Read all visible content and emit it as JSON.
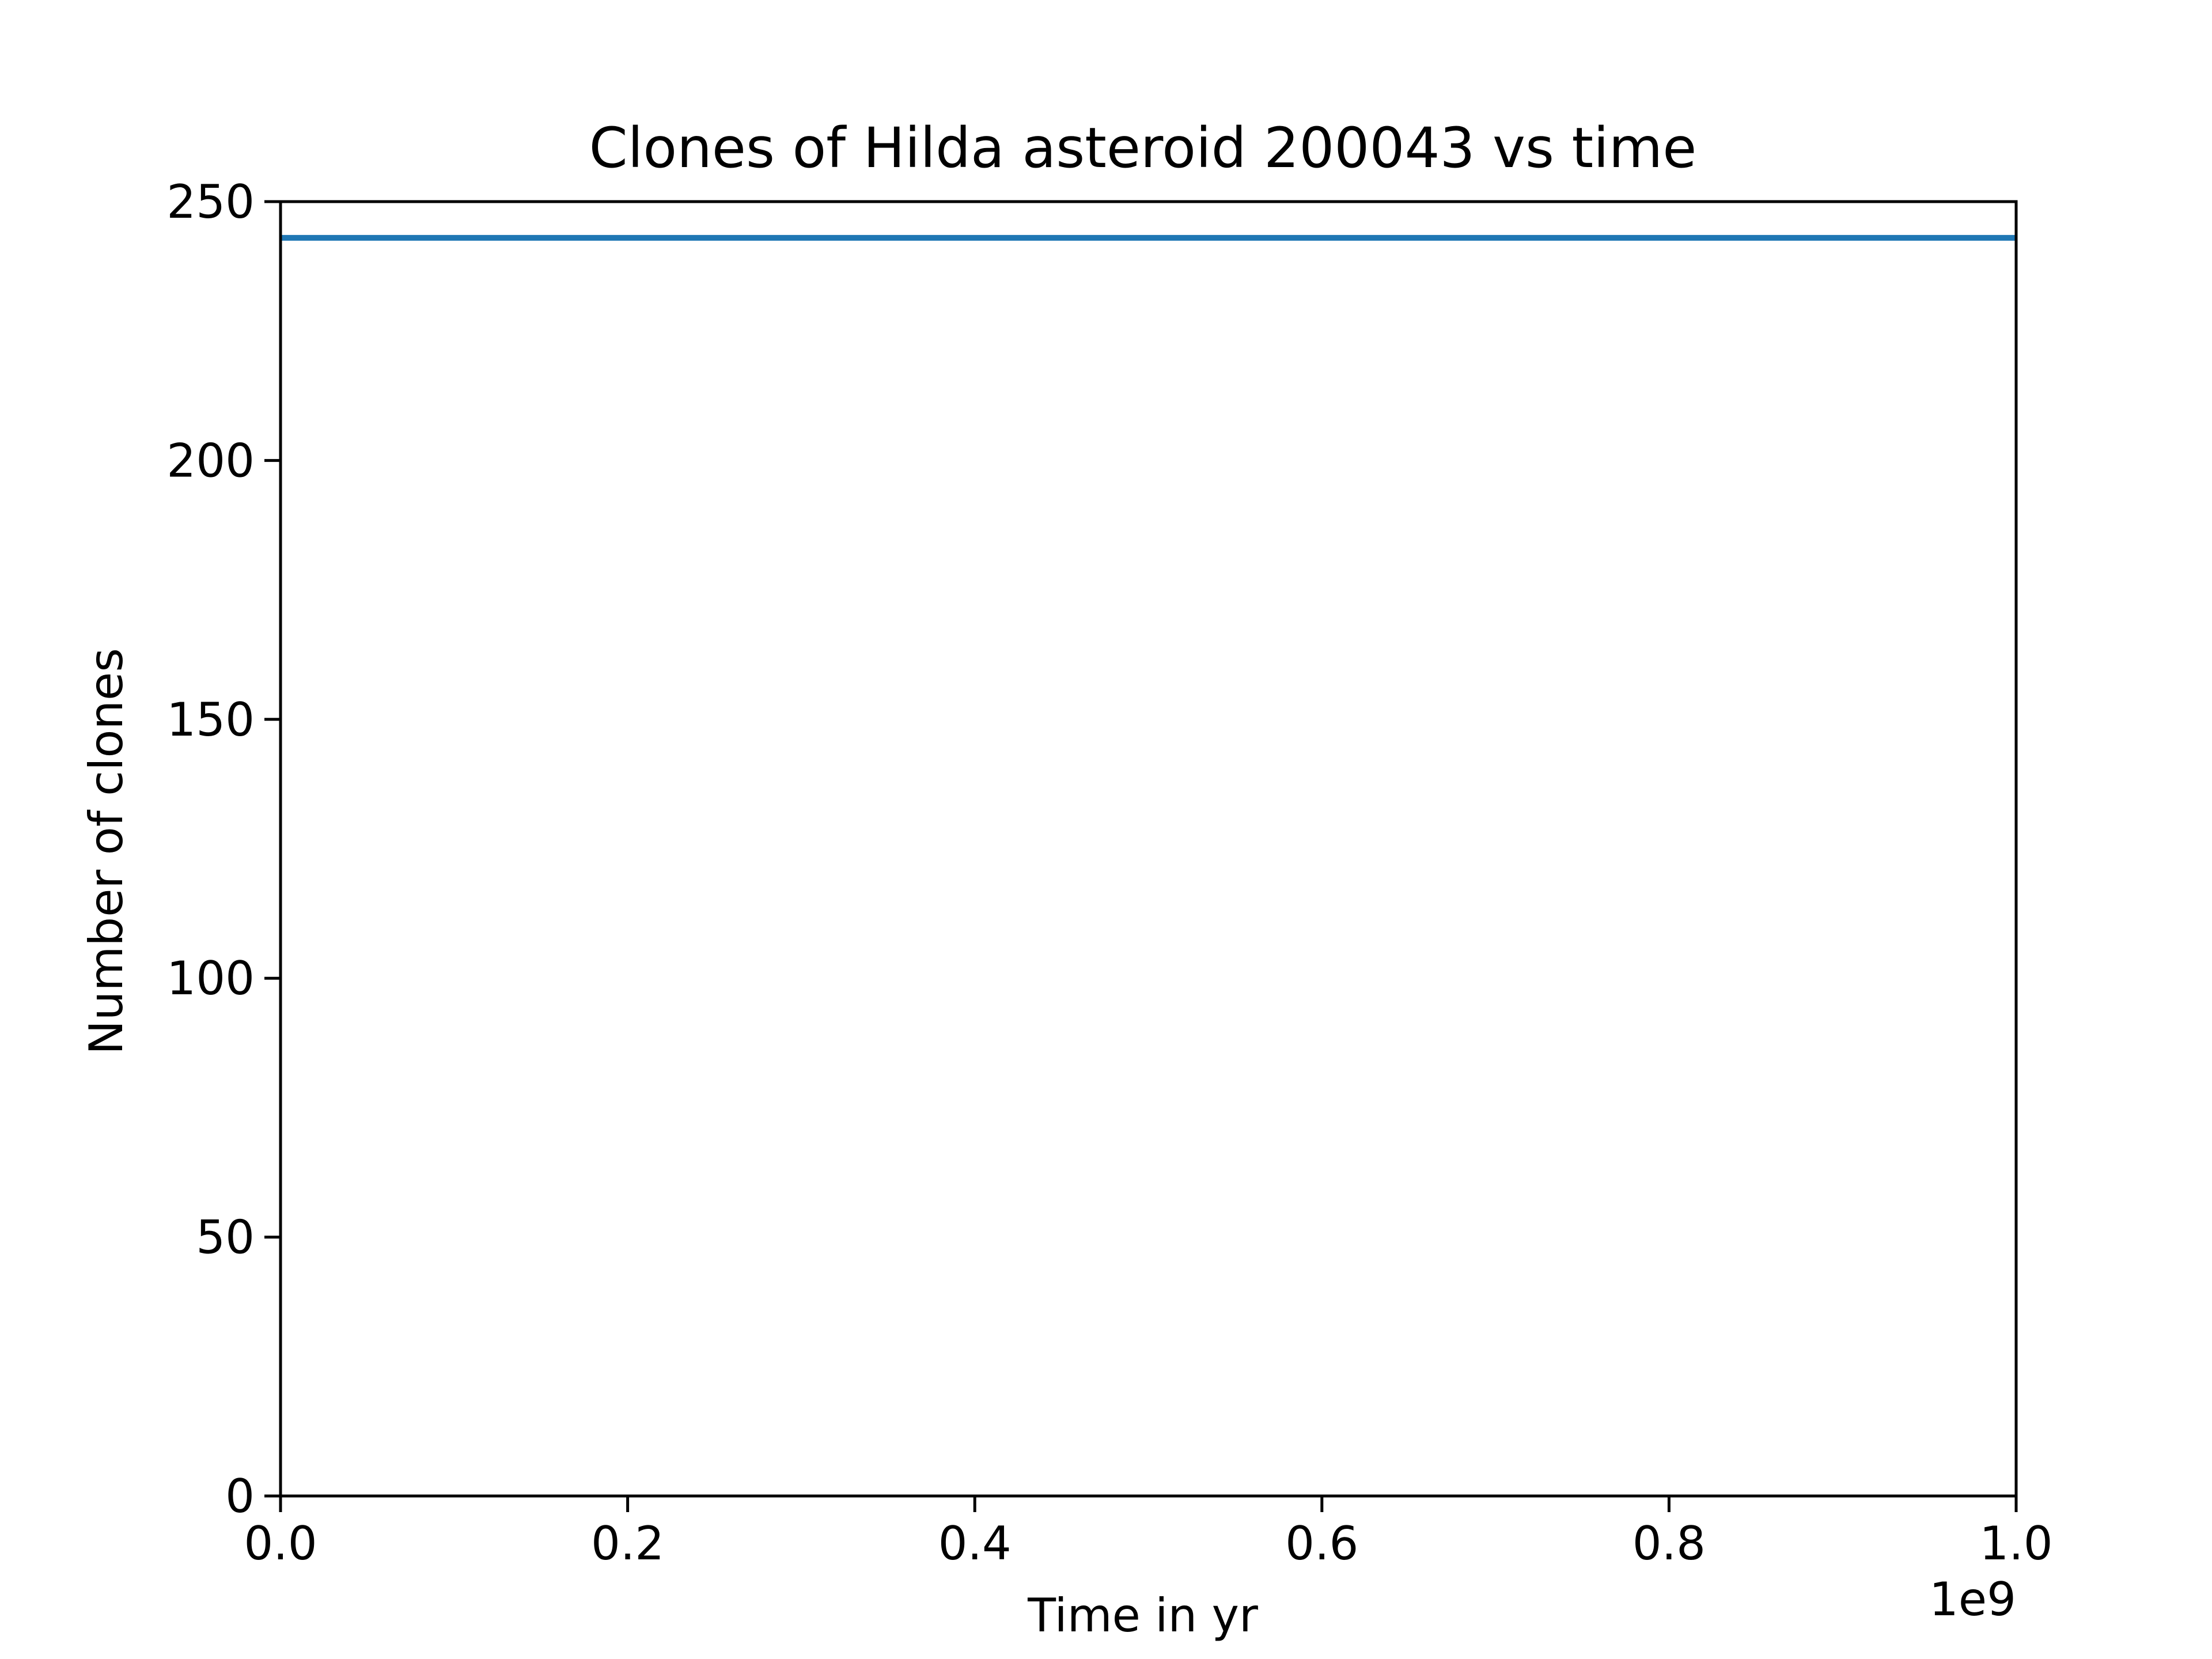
{
  "chart_data": {
    "type": "line",
    "title": "Clones of Hilda asteroid 200043 vs time",
    "xlabel": "Time in yr",
    "ylabel": "Number of clones",
    "x_offset_label": "1e9",
    "xlim": [
      0.0,
      1.0
    ],
    "ylim": [
      0,
      250
    ],
    "x_scale_factor": 1000000000,
    "x_ticks": [
      0.0,
      0.2,
      0.4,
      0.6,
      0.8,
      1.0
    ],
    "x_tick_labels": [
      "0.0",
      "0.2",
      "0.4",
      "0.6",
      "0.8",
      "1.0"
    ],
    "y_ticks": [
      0,
      50,
      100,
      150,
      200,
      250
    ],
    "y_tick_labels": [
      "0",
      "50",
      "100",
      "150",
      "200",
      "250"
    ],
    "grid": false,
    "series": [
      {
        "color": "#1f77b4",
        "x": [
          0.0,
          1.0
        ],
        "y": [
          243,
          243
        ]
      }
    ]
  }
}
